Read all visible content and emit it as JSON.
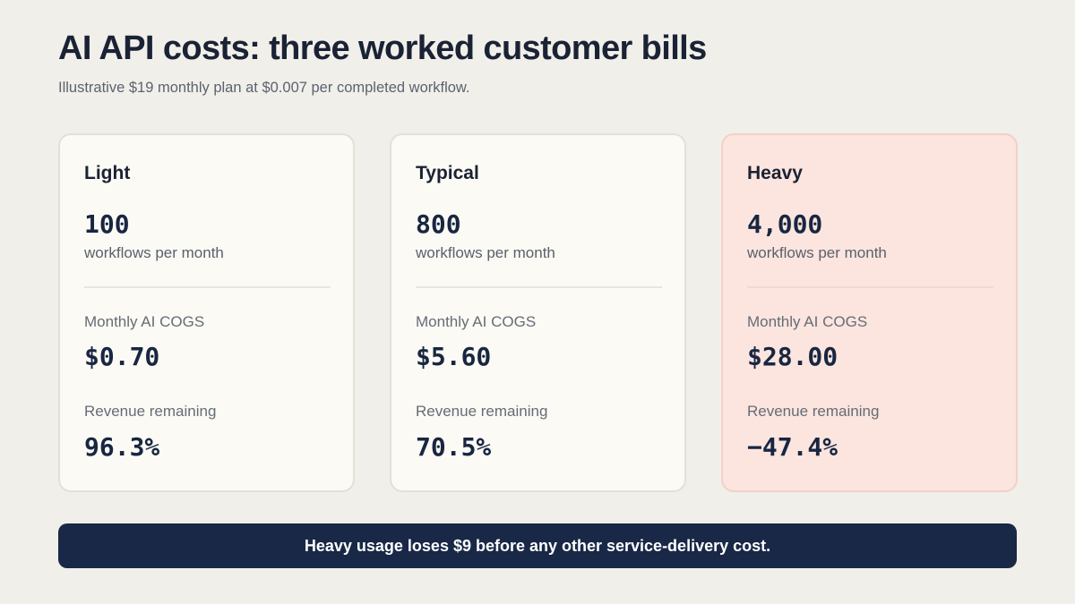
{
  "header": {
    "title": "AI API costs: three worked customer bills",
    "subtitle": "Illustrative $19 monthly plan at $0.007 per completed workflow."
  },
  "colors": {
    "background": "#f1efe9",
    "card": "#fbfaf4",
    "heavy_card": "#fbe5de",
    "banner": "#182846",
    "navy_text": "#182642"
  },
  "cards": [
    {
      "name": "Light",
      "workflows": "100",
      "workflows_caption": "workflows per month",
      "cogs_label": "Monthly AI COGS",
      "cogs_value": "$0.70",
      "revenue_label": "Revenue remaining",
      "revenue_value": "96.3%"
    },
    {
      "name": "Typical",
      "workflows": "800",
      "workflows_caption": "workflows per month",
      "cogs_label": "Monthly AI COGS",
      "cogs_value": "$5.60",
      "revenue_label": "Revenue remaining",
      "revenue_value": "70.5%"
    },
    {
      "name": "Heavy",
      "workflows": "4,000",
      "workflows_caption": "workflows per month",
      "cogs_label": "Monthly AI COGS",
      "cogs_value": "$28.00",
      "revenue_label": "Revenue remaining",
      "revenue_value": "−47.4%"
    }
  ],
  "banner": {
    "text": "Heavy usage loses $9 before any other service-delivery cost."
  }
}
